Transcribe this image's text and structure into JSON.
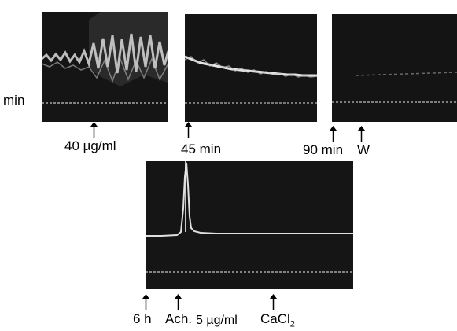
{
  "figure": {
    "scale_label": "min",
    "panel_top_left": {
      "label": "40 µg/ml"
    },
    "panel_top_middle": {
      "label": "45 min"
    },
    "panel_top_right": {
      "label_time": "90 min",
      "label_wash": "W"
    },
    "panel_bottom": {
      "label_time": "6 h",
      "label_ach": "Ach.",
      "label_conc": "5 µg/ml",
      "label_ca_prefix": "CaCl",
      "label_ca_sub": "2"
    }
  }
}
